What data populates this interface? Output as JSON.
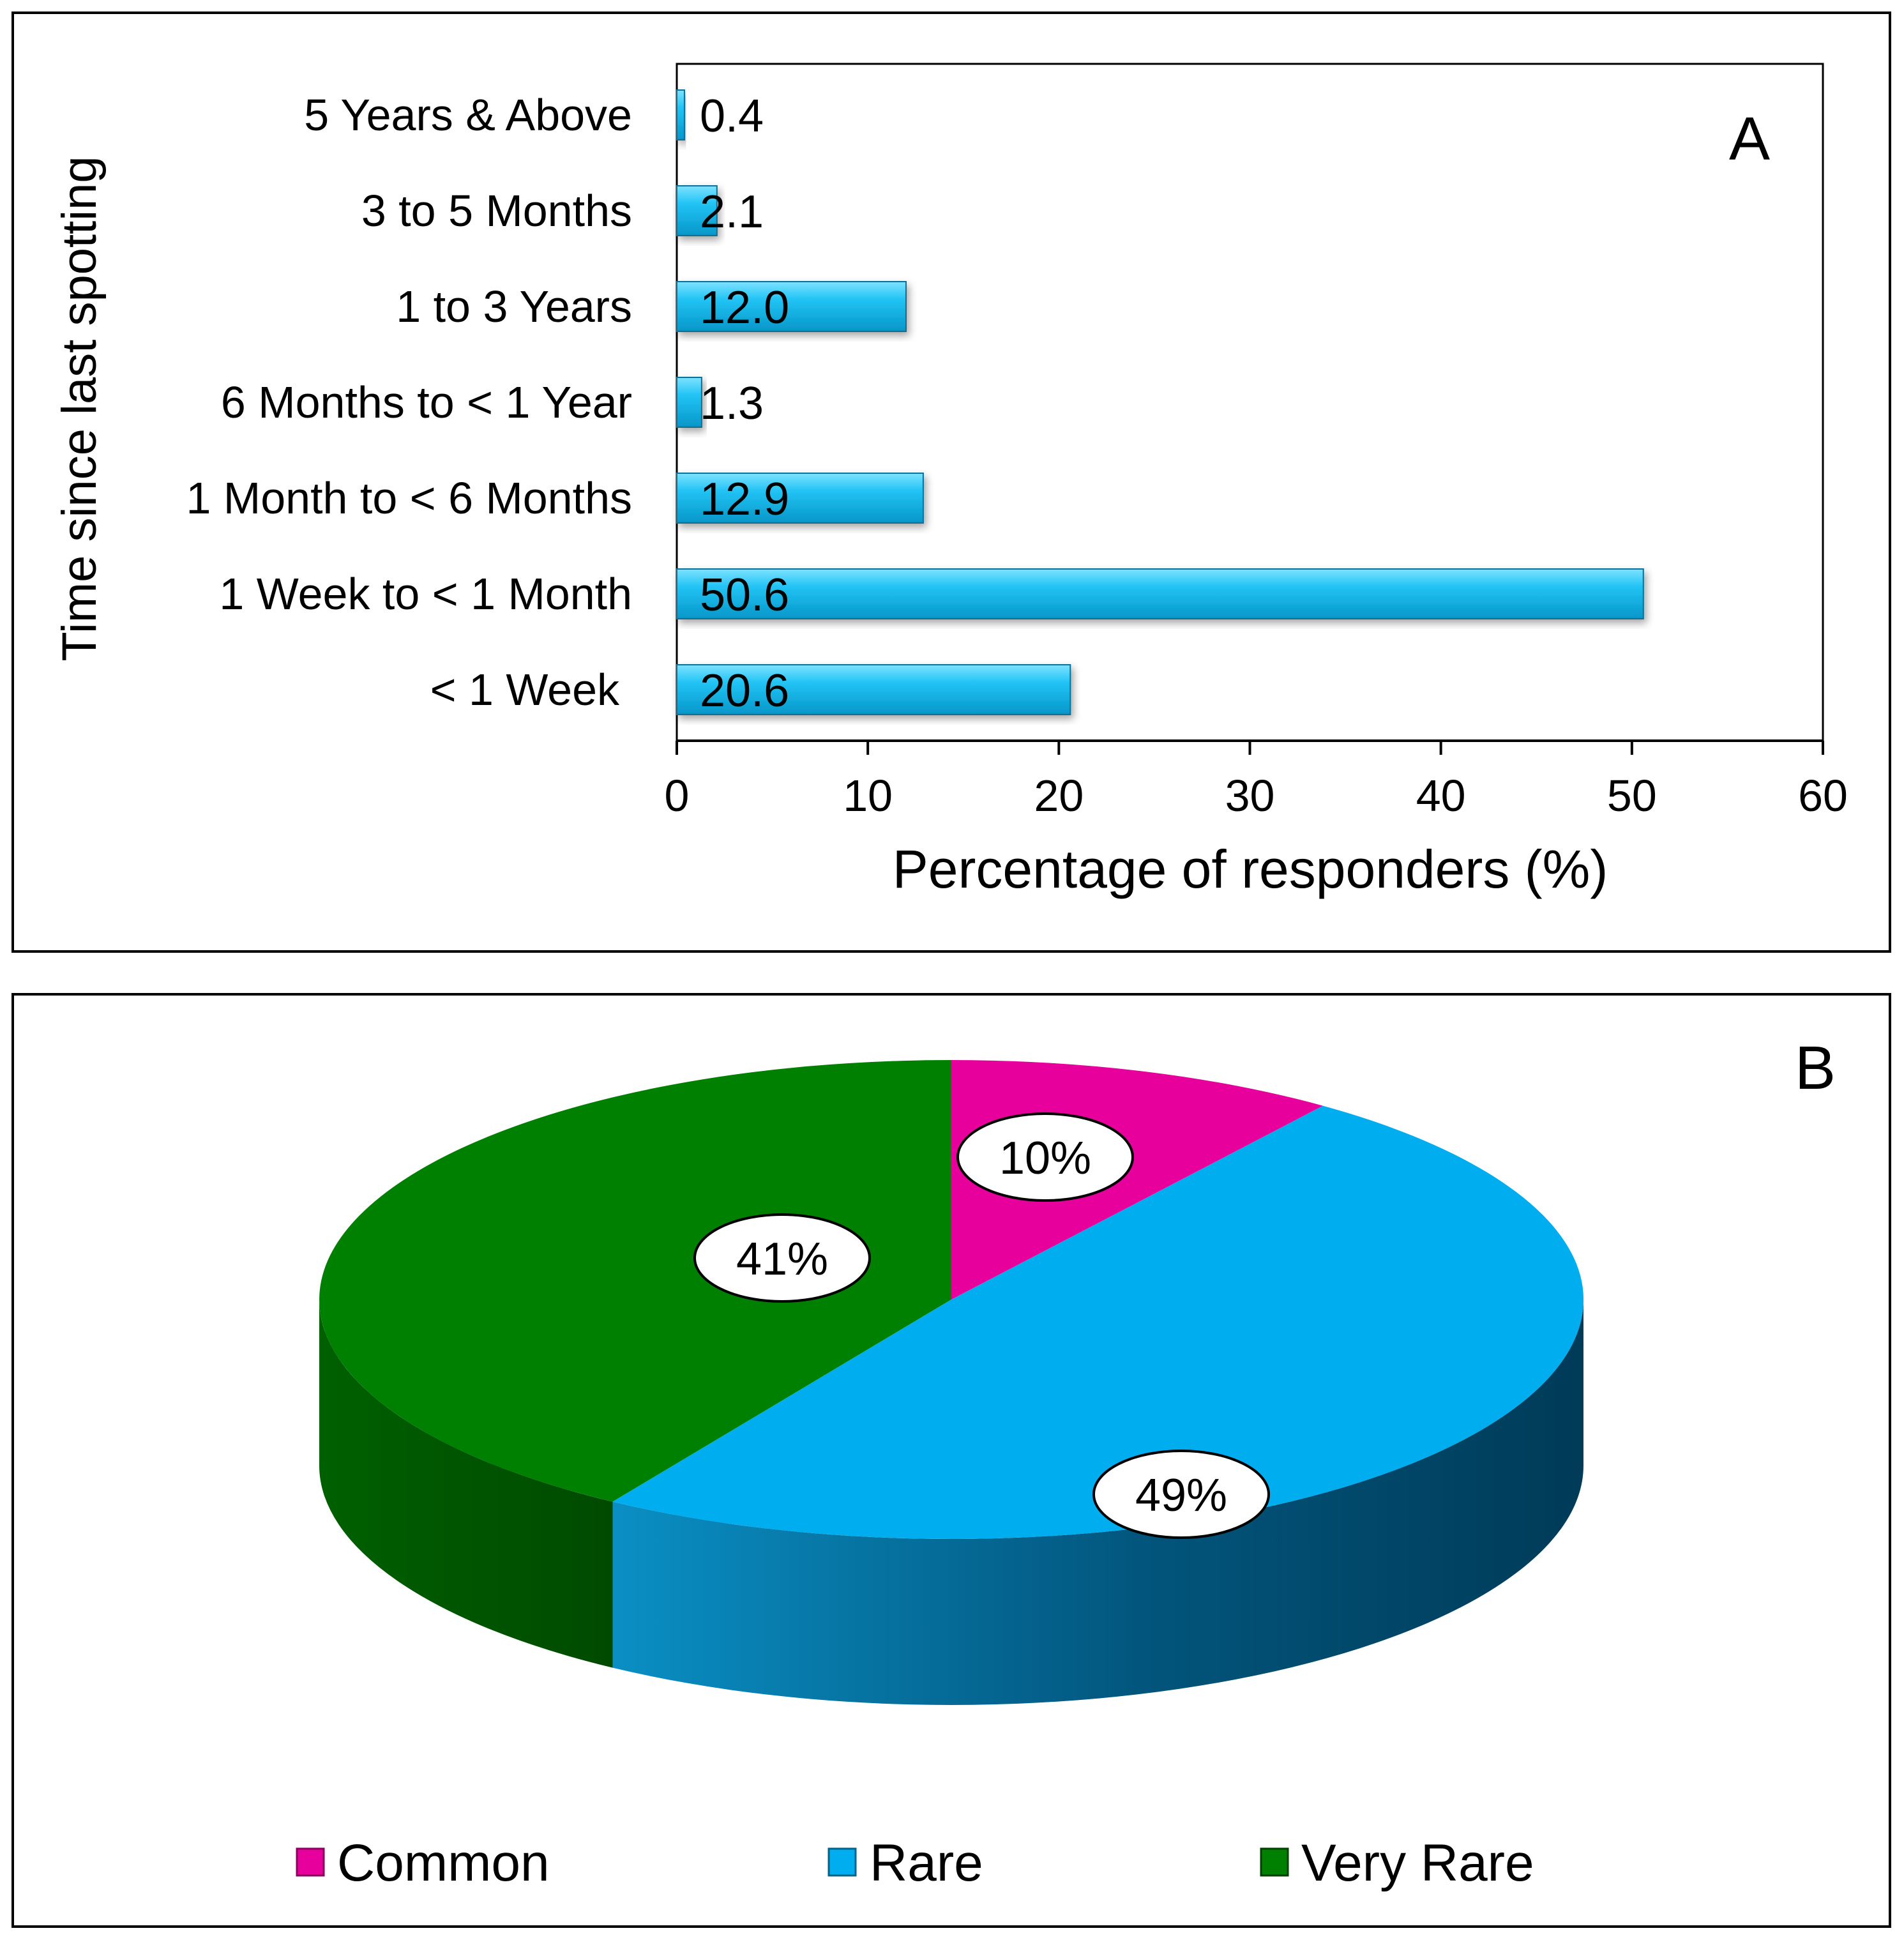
{
  "chart_data": [
    {
      "type": "bar",
      "orientation": "horizontal",
      "panel_label": "A",
      "ylabel": "Time since last spotting",
      "xlabel": "Percentage of responders (%)",
      "xlim": [
        0,
        60
      ],
      "xticks": [
        0,
        10,
        20,
        30,
        40,
        50,
        60
      ],
      "categories": [
        "5 Years & Above",
        "3 to 5 Months",
        "1 to 3 Years",
        "6 Months to < 1 Year",
        "1 Month to < 6 Months",
        "1 Week to < 1 Month",
        "< 1 Week"
      ],
      "values": [
        0.4,
        2.1,
        12.0,
        1.3,
        12.9,
        50.6,
        20.6
      ],
      "value_labels": [
        "0.4",
        "2.1",
        "12.0",
        "1.3",
        "12.9",
        "50.6",
        "20.6"
      ],
      "bar_color": "#00b8f0"
    },
    {
      "type": "pie",
      "panel_label": "B",
      "style": "3d",
      "slices": [
        {
          "name": "Common",
          "value": 10,
          "label": "10%",
          "color": "#e8009c"
        },
        {
          "name": "Rare",
          "value": 49,
          "label": "49%",
          "color": "#00aeef"
        },
        {
          "name": "Very Rare",
          "value": 41,
          "label": "41%",
          "color": "#008000"
        }
      ],
      "legend": [
        "Common",
        "Rare",
        "Very Rare"
      ],
      "legend_position": "bottom"
    }
  ]
}
